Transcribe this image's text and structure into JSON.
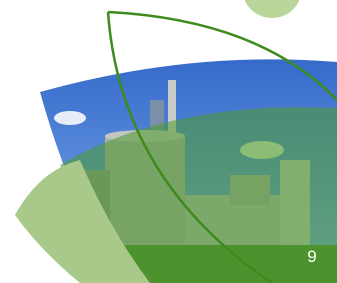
{
  "page_number": "9"
}
